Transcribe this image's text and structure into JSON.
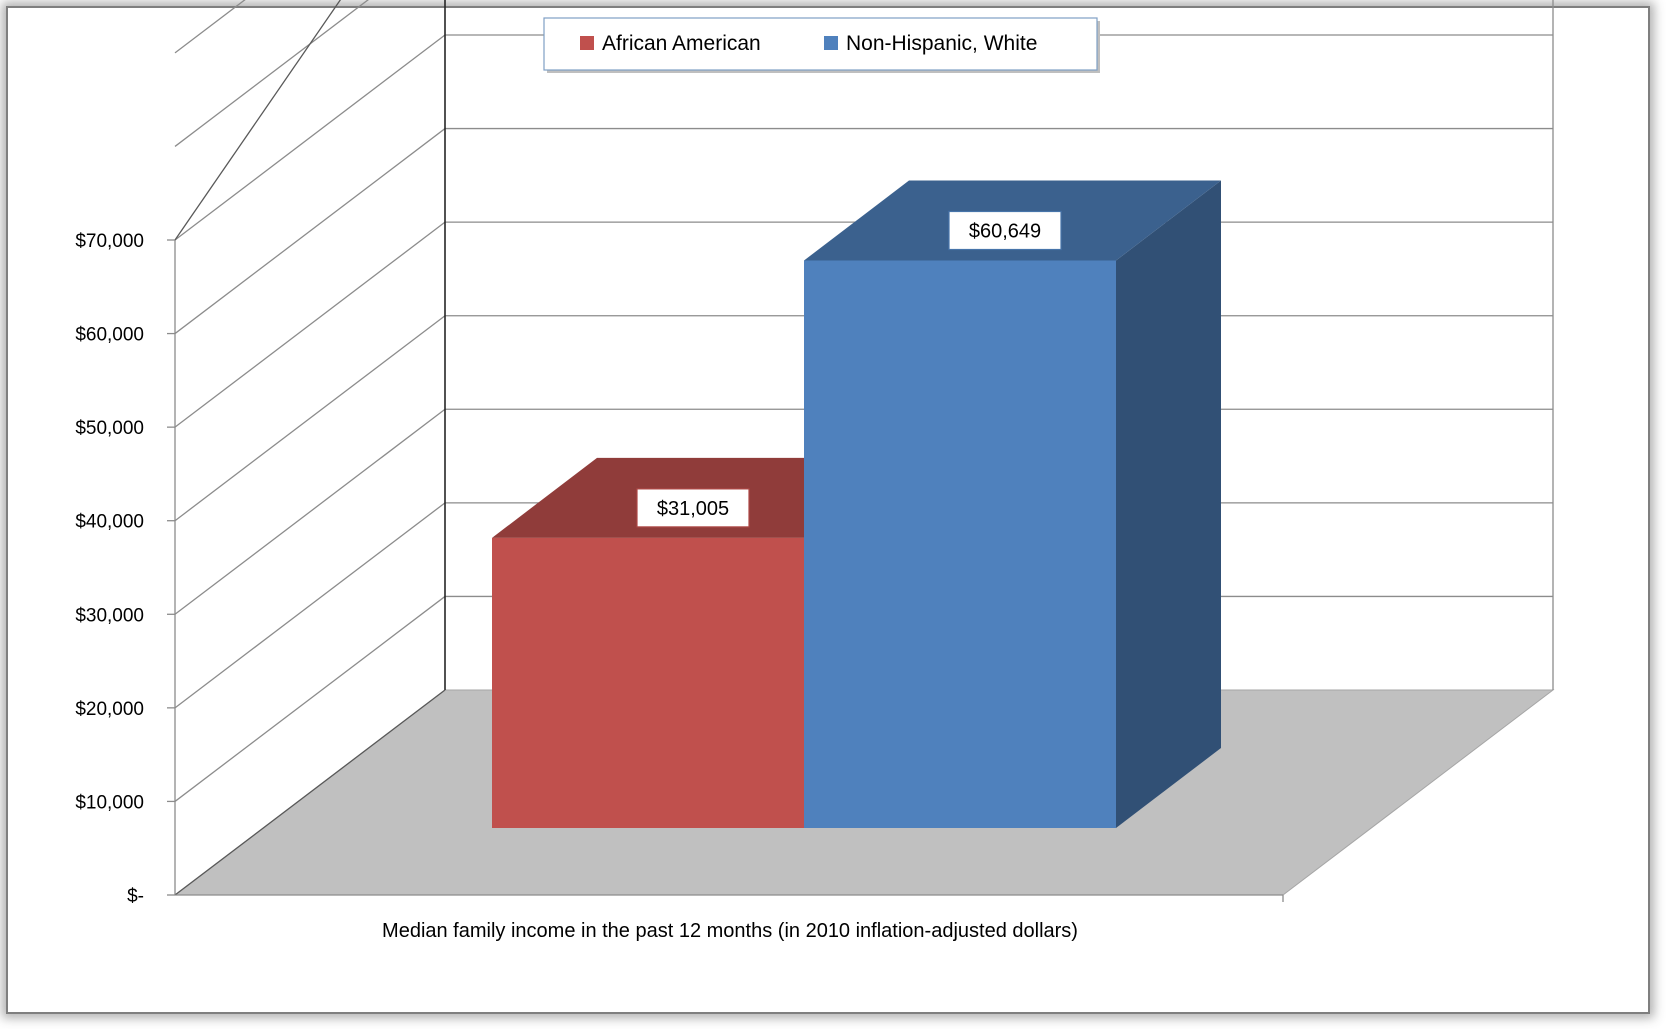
{
  "chart_data": {
    "type": "bar",
    "title": "",
    "categories": [
      "Median family income in the past 12 months (in 2010 inflation-adjusted dollars)"
    ],
    "series": [
      {
        "name": "African American",
        "values": [
          31005
        ],
        "color": "#C0504D",
        "label": "$31,005"
      },
      {
        "name": "Non-Hispanic, White",
        "values": [
          60649
        ],
        "color": "#4F81BD",
        "label": "$60,649"
      }
    ],
    "xlabel": "Median family income in the past 12 months (in 2010 inflation-adjusted dollars)",
    "ylabel": "",
    "ylim": [
      0,
      70000
    ],
    "yticks": [
      0,
      10000,
      20000,
      30000,
      40000,
      50000,
      60000,
      70000
    ],
    "ytick_labels": [
      "$-",
      "$10,000",
      "$20,000",
      "$30,000",
      "$40,000",
      "$50,000",
      "$60,000",
      "$70,000"
    ],
    "grid": true,
    "legend_position": "top-center",
    "style": "3d-column"
  }
}
